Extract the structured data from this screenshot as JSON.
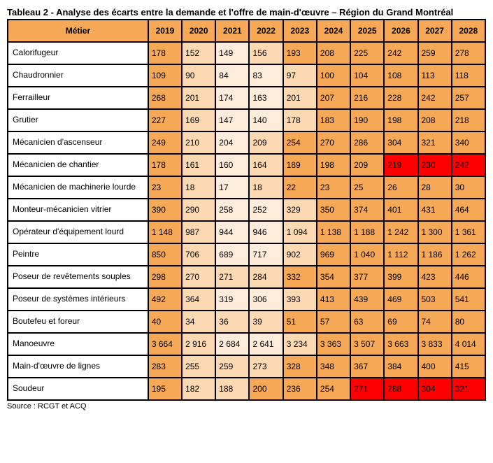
{
  "title": "Tableau 2 - Analyse des écarts entre la demande et l'offre de main-d'œuvre – Région du Grand Montréal",
  "source": "Source : RCGT et ACQ",
  "colors": {
    "header_bg": "#f5a855",
    "shade_dark": "#f5a855",
    "shade_light": "#fbd9b3",
    "shade_lighter": "#fdecd9",
    "shade_red": "#ff0000",
    "border": "#000000",
    "text": "#000000"
  },
  "columns": [
    "Métier",
    "2019",
    "2020",
    "2021",
    "2022",
    "2023",
    "2024",
    "2025",
    "2026",
    "2027",
    "2028"
  ],
  "rows": [
    {
      "label": "Calorifugeur",
      "cells": [
        {
          "v": "178",
          "c": "shade_dark"
        },
        {
          "v": "152",
          "c": "shade_light"
        },
        {
          "v": "149",
          "c": "shade_lighter"
        },
        {
          "v": "156",
          "c": "shade_light"
        },
        {
          "v": "193",
          "c": "shade_dark"
        },
        {
          "v": "208",
          "c": "shade_dark"
        },
        {
          "v": "225",
          "c": "shade_dark"
        },
        {
          "v": "242",
          "c": "shade_dark"
        },
        {
          "v": "259",
          "c": "shade_dark"
        },
        {
          "v": "278",
          "c": "shade_dark"
        }
      ]
    },
    {
      "label": "Chaudronnier",
      "cells": [
        {
          "v": "109",
          "c": "shade_dark"
        },
        {
          "v": "90",
          "c": "shade_light"
        },
        {
          "v": "84",
          "c": "shade_lighter"
        },
        {
          "v": "83",
          "c": "shade_lighter"
        },
        {
          "v": "97",
          "c": "shade_light"
        },
        {
          "v": "100",
          "c": "shade_dark"
        },
        {
          "v": "104",
          "c": "shade_dark"
        },
        {
          "v": "108",
          "c": "shade_dark"
        },
        {
          "v": "113",
          "c": "shade_dark"
        },
        {
          "v": "118",
          "c": "shade_dark"
        }
      ]
    },
    {
      "label": "Ferrailleur",
      "cells": [
        {
          "v": "268",
          "c": "shade_dark"
        },
        {
          "v": "201",
          "c": "shade_light"
        },
        {
          "v": "174",
          "c": "shade_lighter"
        },
        {
          "v": "163",
          "c": "shade_lighter"
        },
        {
          "v": "201",
          "c": "shade_light"
        },
        {
          "v": "207",
          "c": "shade_dark"
        },
        {
          "v": "216",
          "c": "shade_dark"
        },
        {
          "v": "228",
          "c": "shade_dark"
        },
        {
          "v": "242",
          "c": "shade_dark"
        },
        {
          "v": "257",
          "c": "shade_dark"
        }
      ]
    },
    {
      "label": "Grutier",
      "cells": [
        {
          "v": "227",
          "c": "shade_dark"
        },
        {
          "v": "169",
          "c": "shade_light"
        },
        {
          "v": "147",
          "c": "shade_lighter"
        },
        {
          "v": "140",
          "c": "shade_lighter"
        },
        {
          "v": "178",
          "c": "shade_light"
        },
        {
          "v": "183",
          "c": "shade_dark"
        },
        {
          "v": "190",
          "c": "shade_dark"
        },
        {
          "v": "198",
          "c": "shade_dark"
        },
        {
          "v": "208",
          "c": "shade_dark"
        },
        {
          "v": "218",
          "c": "shade_dark"
        }
      ]
    },
    {
      "label": "Mécanicien d'ascenseur",
      "cells": [
        {
          "v": "249",
          "c": "shade_dark"
        },
        {
          "v": "210",
          "c": "shade_light"
        },
        {
          "v": "204",
          "c": "shade_lighter"
        },
        {
          "v": "209",
          "c": "shade_light"
        },
        {
          "v": "254",
          "c": "shade_dark"
        },
        {
          "v": "270",
          "c": "shade_dark"
        },
        {
          "v": "286",
          "c": "shade_dark"
        },
        {
          "v": "304",
          "c": "shade_dark"
        },
        {
          "v": "321",
          "c": "shade_dark"
        },
        {
          "v": "340",
          "c": "shade_dark"
        }
      ]
    },
    {
      "label": "Mécanicien de chantier",
      "cells": [
        {
          "v": "178",
          "c": "shade_dark"
        },
        {
          "v": "161",
          "c": "shade_light"
        },
        {
          "v": "160",
          "c": "shade_lighter"
        },
        {
          "v": "164",
          "c": "shade_light"
        },
        {
          "v": "189",
          "c": "shade_dark"
        },
        {
          "v": "198",
          "c": "shade_dark"
        },
        {
          "v": "209",
          "c": "shade_dark"
        },
        {
          "v": "219",
          "c": "shade_red"
        },
        {
          "v": "230",
          "c": "shade_red"
        },
        {
          "v": "242",
          "c": "shade_red"
        }
      ]
    },
    {
      "label": "Mécanicien de machinerie lourde",
      "cells": [
        {
          "v": "23",
          "c": "shade_dark"
        },
        {
          "v": "18",
          "c": "shade_light"
        },
        {
          "v": "17",
          "c": "shade_lighter"
        },
        {
          "v": "18",
          "c": "shade_light"
        },
        {
          "v": "22",
          "c": "shade_dark"
        },
        {
          "v": "23",
          "c": "shade_dark"
        },
        {
          "v": "25",
          "c": "shade_dark"
        },
        {
          "v": "26",
          "c": "shade_dark"
        },
        {
          "v": "28",
          "c": "shade_dark"
        },
        {
          "v": "30",
          "c": "shade_dark"
        }
      ]
    },
    {
      "label": "Monteur-mécanicien vitrier",
      "cells": [
        {
          "v": "390",
          "c": "shade_dark"
        },
        {
          "v": "290",
          "c": "shade_light"
        },
        {
          "v": "258",
          "c": "shade_lighter"
        },
        {
          "v": "252",
          "c": "shade_lighter"
        },
        {
          "v": "329",
          "c": "shade_light"
        },
        {
          "v": "350",
          "c": "shade_dark"
        },
        {
          "v": "374",
          "c": "shade_dark"
        },
        {
          "v": "401",
          "c": "shade_dark"
        },
        {
          "v": "431",
          "c": "shade_dark"
        },
        {
          "v": "464",
          "c": "shade_dark"
        }
      ]
    },
    {
      "label": "Opérateur d'équipement lourd",
      "cells": [
        {
          "v": "1 148",
          "c": "shade_dark"
        },
        {
          "v": "987",
          "c": "shade_light"
        },
        {
          "v": "944",
          "c": "shade_lighter"
        },
        {
          "v": "946",
          "c": "shade_lighter"
        },
        {
          "v": "1 094",
          "c": "shade_light"
        },
        {
          "v": "1 138",
          "c": "shade_dark"
        },
        {
          "v": "1 188",
          "c": "shade_dark"
        },
        {
          "v": "1 242",
          "c": "shade_dark"
        },
        {
          "v": "1 300",
          "c": "shade_dark"
        },
        {
          "v": "1 361",
          "c": "shade_dark"
        }
      ]
    },
    {
      "label": "Peintre",
      "cells": [
        {
          "v": "850",
          "c": "shade_dark"
        },
        {
          "v": "706",
          "c": "shade_light"
        },
        {
          "v": "689",
          "c": "shade_lighter"
        },
        {
          "v": "717",
          "c": "shade_lighter"
        },
        {
          "v": "902",
          "c": "shade_light"
        },
        {
          "v": "969",
          "c": "shade_dark"
        },
        {
          "v": "1 040",
          "c": "shade_dark"
        },
        {
          "v": "1 112",
          "c": "shade_dark"
        },
        {
          "v": "1 186",
          "c": "shade_dark"
        },
        {
          "v": "1 262",
          "c": "shade_dark"
        }
      ]
    },
    {
      "label": "Poseur de revêtements souples",
      "cells": [
        {
          "v": "298",
          "c": "shade_dark"
        },
        {
          "v": "270",
          "c": "shade_light"
        },
        {
          "v": "271",
          "c": "shade_light"
        },
        {
          "v": "284",
          "c": "shade_light"
        },
        {
          "v": "332",
          "c": "shade_dark"
        },
        {
          "v": "354",
          "c": "shade_dark"
        },
        {
          "v": "377",
          "c": "shade_dark"
        },
        {
          "v": "399",
          "c": "shade_dark"
        },
        {
          "v": "423",
          "c": "shade_dark"
        },
        {
          "v": "446",
          "c": "shade_dark"
        }
      ]
    },
    {
      "label": "Poseur de systèmes intérieurs",
      "cells": [
        {
          "v": "492",
          "c": "shade_dark"
        },
        {
          "v": "364",
          "c": "shade_light"
        },
        {
          "v": "319",
          "c": "shade_lighter"
        },
        {
          "v": "306",
          "c": "shade_lighter"
        },
        {
          "v": "393",
          "c": "shade_light"
        },
        {
          "v": "413",
          "c": "shade_dark"
        },
        {
          "v": "439",
          "c": "shade_dark"
        },
        {
          "v": "469",
          "c": "shade_dark"
        },
        {
          "v": "503",
          "c": "shade_dark"
        },
        {
          "v": "541",
          "c": "shade_dark"
        }
      ]
    },
    {
      "label": "Boutefeu et foreur",
      "cells": [
        {
          "v": "40",
          "c": "shade_dark"
        },
        {
          "v": "34",
          "c": "shade_light"
        },
        {
          "v": "36",
          "c": "shade_light"
        },
        {
          "v": "39",
          "c": "shade_light"
        },
        {
          "v": "51",
          "c": "shade_dark"
        },
        {
          "v": "57",
          "c": "shade_dark"
        },
        {
          "v": "63",
          "c": "shade_dark"
        },
        {
          "v": "69",
          "c": "shade_dark"
        },
        {
          "v": "74",
          "c": "shade_dark"
        },
        {
          "v": "80",
          "c": "shade_dark"
        }
      ]
    },
    {
      "label": "Manoeuvre",
      "cells": [
        {
          "v": "3 664",
          "c": "shade_dark"
        },
        {
          "v": "2 916",
          "c": "shade_light"
        },
        {
          "v": "2 684",
          "c": "shade_lighter"
        },
        {
          "v": "2 641",
          "c": "shade_lighter"
        },
        {
          "v": "3 234",
          "c": "shade_light"
        },
        {
          "v": "3 363",
          "c": "shade_dark"
        },
        {
          "v": "3 507",
          "c": "shade_dark"
        },
        {
          "v": "3 663",
          "c": "shade_dark"
        },
        {
          "v": "3 833",
          "c": "shade_dark"
        },
        {
          "v": "4 014",
          "c": "shade_dark"
        }
      ]
    },
    {
      "label": "Main-d'œuvre de lignes",
      "cells": [
        {
          "v": "283",
          "c": "shade_dark"
        },
        {
          "v": "255",
          "c": "shade_light"
        },
        {
          "v": "259",
          "c": "shade_light"
        },
        {
          "v": "273",
          "c": "shade_light"
        },
        {
          "v": "328",
          "c": "shade_dark"
        },
        {
          "v": "348",
          "c": "shade_dark"
        },
        {
          "v": "367",
          "c": "shade_dark"
        },
        {
          "v": "384",
          "c": "shade_dark"
        },
        {
          "v": "400",
          "c": "shade_dark"
        },
        {
          "v": "415",
          "c": "shade_dark"
        }
      ]
    },
    {
      "label": "Soudeur",
      "cells": [
        {
          "v": "195",
          "c": "shade_dark"
        },
        {
          "v": "182",
          "c": "shade_light"
        },
        {
          "v": "188",
          "c": "shade_light"
        },
        {
          "v": "200",
          "c": "shade_dark"
        },
        {
          "v": "236",
          "c": "shade_dark"
        },
        {
          "v": "254",
          "c": "shade_dark"
        },
        {
          "v": "271",
          "c": "shade_red"
        },
        {
          "v": "288",
          "c": "shade_red"
        },
        {
          "v": "304",
          "c": "shade_red"
        },
        {
          "v": "321",
          "c": "shade_red"
        }
      ]
    }
  ]
}
